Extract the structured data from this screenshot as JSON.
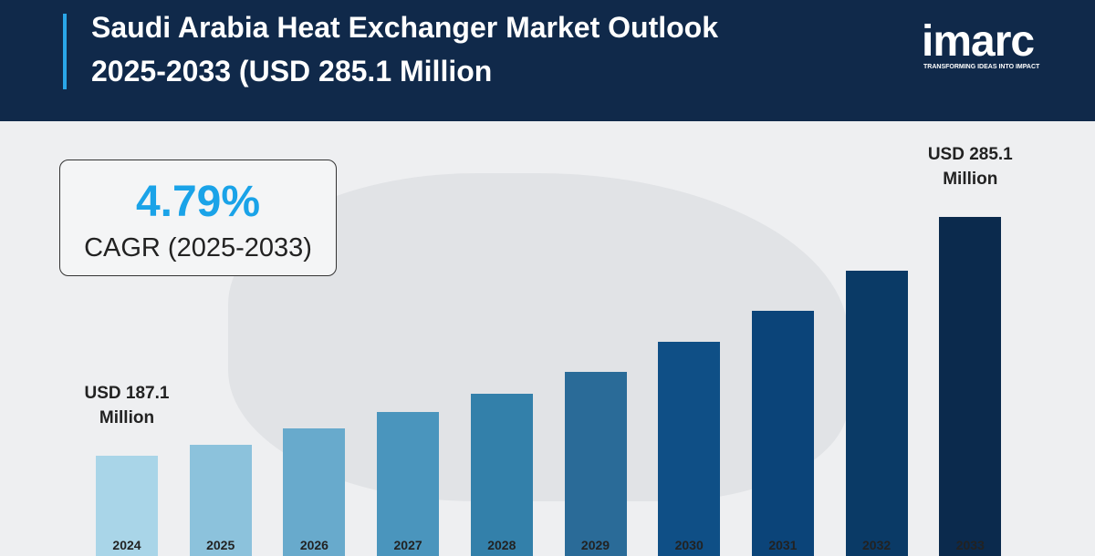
{
  "chart_data": {
    "type": "bar",
    "title": [
      "Saudi Arabia Heat Exchanger Market Outlook",
      "2025-2033 (USD 285.1 Million"
    ],
    "brand": "imarc",
    "brand_tagline": "TRANSFORMING IDEAS INTO IMPACT",
    "cagr": "4.79%",
    "cagr_label": "CAGR (2025-2033)",
    "categories": [
      "2024",
      "2025",
      "2026",
      "2027",
      "2028",
      "2029",
      "2030",
      "2031",
      "2032",
      "2033"
    ],
    "values": [
      187.1,
      191.5,
      198.3,
      205.0,
      212.5,
      221.5,
      233.8,
      246.5,
      263.0,
      285.1
    ],
    "value_labels": [
      "USD 187.1 Million",
      null,
      null,
      null,
      null,
      null,
      null,
      null,
      null,
      "USD 285.1 Million"
    ],
    "colors": [
      "#a9d5e8",
      "#8cc2dc",
      "#68aacc",
      "#4a95bd",
      "#3380aa",
      "#2a6b98",
      "#0f4f86",
      "#0b4479",
      "#0a3a66",
      "#0b2a4d"
    ]
  }
}
